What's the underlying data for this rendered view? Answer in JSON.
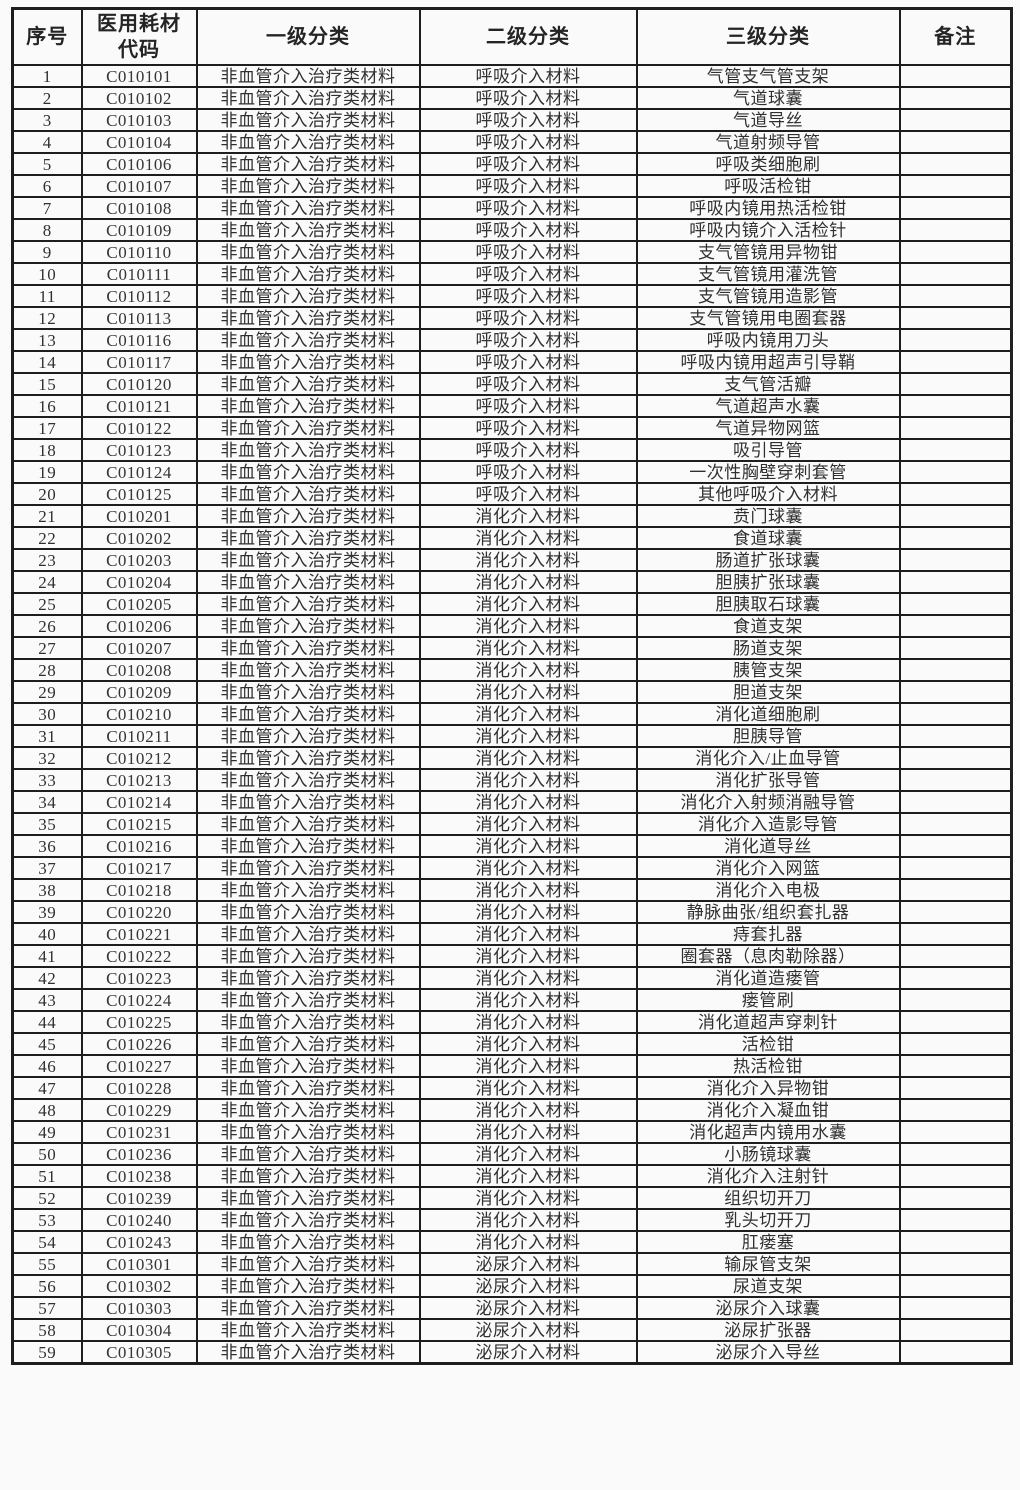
{
  "document": {
    "columns": [
      "序号",
      "医用耗材\n代码",
      "一级分类",
      "二级分类",
      "三级分类",
      "备注"
    ],
    "rows": [
      [
        "1",
        "C010101",
        "非血管介入治疗类材料",
        "呼吸介入材料",
        "气管支气管支架",
        ""
      ],
      [
        "2",
        "C010102",
        "非血管介入治疗类材料",
        "呼吸介入材料",
        "气道球囊",
        ""
      ],
      [
        "3",
        "C010103",
        "非血管介入治疗类材料",
        "呼吸介入材料",
        "气道导丝",
        ""
      ],
      [
        "4",
        "C010104",
        "非血管介入治疗类材料",
        "呼吸介入材料",
        "气道射频导管",
        ""
      ],
      [
        "5",
        "C010106",
        "非血管介入治疗类材料",
        "呼吸介入材料",
        "呼吸类细胞刷",
        ""
      ],
      [
        "6",
        "C010107",
        "非血管介入治疗类材料",
        "呼吸介入材料",
        "呼吸活检钳",
        ""
      ],
      [
        "7",
        "C010108",
        "非血管介入治疗类材料",
        "呼吸介入材料",
        "呼吸内镜用热活检钳",
        ""
      ],
      [
        "8",
        "C010109",
        "非血管介入治疗类材料",
        "呼吸介入材料",
        "呼吸内镜介入活检针",
        ""
      ],
      [
        "9",
        "C010110",
        "非血管介入治疗类材料",
        "呼吸介入材料",
        "支气管镜用异物钳",
        ""
      ],
      [
        "10",
        "C010111",
        "非血管介入治疗类材料",
        "呼吸介入材料",
        "支气管镜用灌洗管",
        ""
      ],
      [
        "11",
        "C010112",
        "非血管介入治疗类材料",
        "呼吸介入材料",
        "支气管镜用造影管",
        ""
      ],
      [
        "12",
        "C010113",
        "非血管介入治疗类材料",
        "呼吸介入材料",
        "支气管镜用电圈套器",
        ""
      ],
      [
        "13",
        "C010116",
        "非血管介入治疗类材料",
        "呼吸介入材料",
        "呼吸内镜用刀头",
        ""
      ],
      [
        "14",
        "C010117",
        "非血管介入治疗类材料",
        "呼吸介入材料",
        "呼吸内镜用超声引导鞘",
        ""
      ],
      [
        "15",
        "C010120",
        "非血管介入治疗类材料",
        "呼吸介入材料",
        "支气管活瓣",
        ""
      ],
      [
        "16",
        "C010121",
        "非血管介入治疗类材料",
        "呼吸介入材料",
        "气道超声水囊",
        ""
      ],
      [
        "17",
        "C010122",
        "非血管介入治疗类材料",
        "呼吸介入材料",
        "气道异物网篮",
        ""
      ],
      [
        "18",
        "C010123",
        "非血管介入治疗类材料",
        "呼吸介入材料",
        "吸引导管",
        ""
      ],
      [
        "19",
        "C010124",
        "非血管介入治疗类材料",
        "呼吸介入材料",
        "一次性胸壁穿刺套管",
        ""
      ],
      [
        "20",
        "C010125",
        "非血管介入治疗类材料",
        "呼吸介入材料",
        "其他呼吸介入材料",
        ""
      ],
      [
        "21",
        "C010201",
        "非血管介入治疗类材料",
        "消化介入材料",
        "贲门球囊",
        ""
      ],
      [
        "22",
        "C010202",
        "非血管介入治疗类材料",
        "消化介入材料",
        "食道球囊",
        ""
      ],
      [
        "23",
        "C010203",
        "非血管介入治疗类材料",
        "消化介入材料",
        "肠道扩张球囊",
        ""
      ],
      [
        "24",
        "C010204",
        "非血管介入治疗类材料",
        "消化介入材料",
        "胆胰扩张球囊",
        ""
      ],
      [
        "25",
        "C010205",
        "非血管介入治疗类材料",
        "消化介入材料",
        "胆胰取石球囊",
        ""
      ],
      [
        "26",
        "C010206",
        "非血管介入治疗类材料",
        "消化介入材料",
        "食道支架",
        ""
      ],
      [
        "27",
        "C010207",
        "非血管介入治疗类材料",
        "消化介入材料",
        "肠道支架",
        ""
      ],
      [
        "28",
        "C010208",
        "非血管介入治疗类材料",
        "消化介入材料",
        "胰管支架",
        ""
      ],
      [
        "29",
        "C010209",
        "非血管介入治疗类材料",
        "消化介入材料",
        "胆道支架",
        ""
      ],
      [
        "30",
        "C010210",
        "非血管介入治疗类材料",
        "消化介入材料",
        "消化道细胞刷",
        ""
      ],
      [
        "31",
        "C010211",
        "非血管介入治疗类材料",
        "消化介入材料",
        "胆胰导管",
        ""
      ],
      [
        "32",
        "C010212",
        "非血管介入治疗类材料",
        "消化介入材料",
        "消化介入/止血导管",
        ""
      ],
      [
        "33",
        "C010213",
        "非血管介入治疗类材料",
        "消化介入材料",
        "消化扩张导管",
        ""
      ],
      [
        "34",
        "C010214",
        "非血管介入治疗类材料",
        "消化介入材料",
        "消化介入射频消融导管",
        ""
      ],
      [
        "35",
        "C010215",
        "非血管介入治疗类材料",
        "消化介入材料",
        "消化介入造影导管",
        ""
      ],
      [
        "36",
        "C010216",
        "非血管介入治疗类材料",
        "消化介入材料",
        "消化道导丝",
        ""
      ],
      [
        "37",
        "C010217",
        "非血管介入治疗类材料",
        "消化介入材料",
        "消化介入网篮",
        ""
      ],
      [
        "38",
        "C010218",
        "非血管介入治疗类材料",
        "消化介入材料",
        "消化介入电极",
        ""
      ],
      [
        "39",
        "C010220",
        "非血管介入治疗类材料",
        "消化介入材料",
        "静脉曲张/组织套扎器",
        ""
      ],
      [
        "40",
        "C010221",
        "非血管介入治疗类材料",
        "消化介入材料",
        "痔套扎器",
        ""
      ],
      [
        "41",
        "C010222",
        "非血管介入治疗类材料",
        "消化介入材料",
        "圈套器（息肉勒除器）",
        ""
      ],
      [
        "42",
        "C010223",
        "非血管介入治疗类材料",
        "消化介入材料",
        "消化道造瘘管",
        ""
      ],
      [
        "43",
        "C010224",
        "非血管介入治疗类材料",
        "消化介入材料",
        "瘘管刷",
        ""
      ],
      [
        "44",
        "C010225",
        "非血管介入治疗类材料",
        "消化介入材料",
        "消化道超声穿刺针",
        ""
      ],
      [
        "45",
        "C010226",
        "非血管介入治疗类材料",
        "消化介入材料",
        "活检钳",
        ""
      ],
      [
        "46",
        "C010227",
        "非血管介入治疗类材料",
        "消化介入材料",
        "热活检钳",
        ""
      ],
      [
        "47",
        "C010228",
        "非血管介入治疗类材料",
        "消化介入材料",
        "消化介入异物钳",
        ""
      ],
      [
        "48",
        "C010229",
        "非血管介入治疗类材料",
        "消化介入材料",
        "消化介入凝血钳",
        ""
      ],
      [
        "49",
        "C010231",
        "非血管介入治疗类材料",
        "消化介入材料",
        "消化超声内镜用水囊",
        ""
      ],
      [
        "50",
        "C010236",
        "非血管介入治疗类材料",
        "消化介入材料",
        "小肠镜球囊",
        ""
      ],
      [
        "51",
        "C010238",
        "非血管介入治疗类材料",
        "消化介入材料",
        "消化介入注射针",
        ""
      ],
      [
        "52",
        "C010239",
        "非血管介入治疗类材料",
        "消化介入材料",
        "组织切开刀",
        ""
      ],
      [
        "53",
        "C010240",
        "非血管介入治疗类材料",
        "消化介入材料",
        "乳头切开刀",
        ""
      ],
      [
        "54",
        "C010243",
        "非血管介入治疗类材料",
        "消化介入材料",
        "肛瘘塞",
        ""
      ],
      [
        "55",
        "C010301",
        "非血管介入治疗类材料",
        "泌尿介入材料",
        "输尿管支架",
        ""
      ],
      [
        "56",
        "C010302",
        "非血管介入治疗类材料",
        "泌尿介入材料",
        "尿道支架",
        ""
      ],
      [
        "57",
        "C010303",
        "非血管介入治疗类材料",
        "泌尿介入材料",
        "泌尿介入球囊",
        ""
      ],
      [
        "58",
        "C010304",
        "非血管介入治疗类材料",
        "泌尿介入材料",
        "泌尿扩张器",
        ""
      ],
      [
        "59",
        "C010305",
        "非血管介入治疗类材料",
        "泌尿介入材料",
        "泌尿介入导丝",
        ""
      ]
    ]
  }
}
